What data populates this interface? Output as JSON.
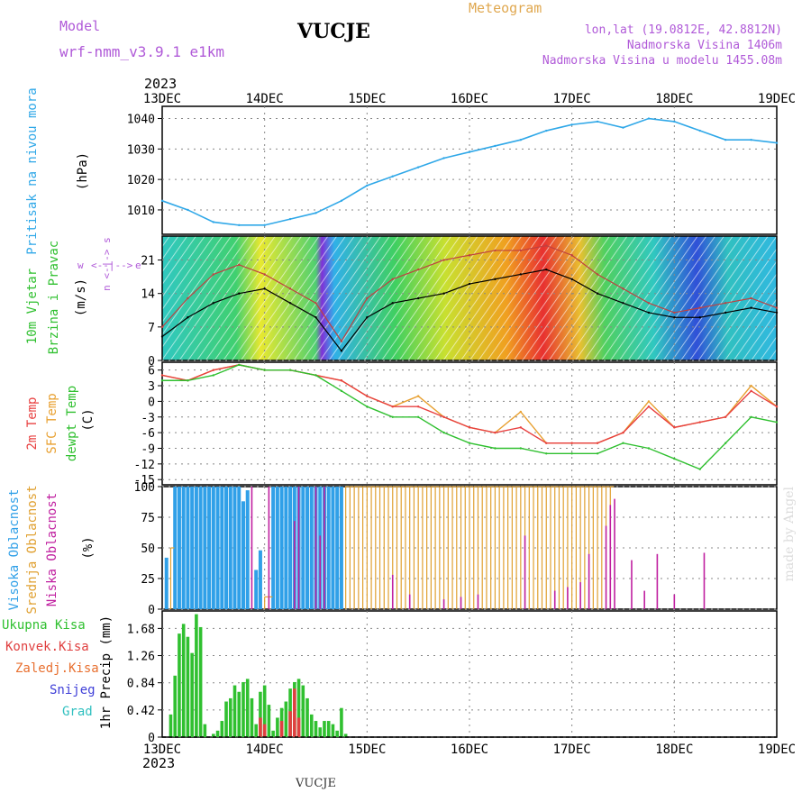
{
  "header": {
    "model_label": "Model",
    "model_name": "wrf-nmm_v3.9.1 e1km",
    "station": "VUCJE",
    "meteogram": "Meteogram",
    "coords": "lon,lat (19.0812E, 42.8812N)",
    "elevation": "Nadmorska Visina 1406m",
    "model_elevation": "Nadmorska Visina u modelu 1455.08m",
    "year_top": "2023",
    "year_bottom": "2023",
    "credit": "made by Angel",
    "footer_station": "VUCJE"
  },
  "time_axis": {
    "labels": [
      "13DEC",
      "14DEC",
      "15DEC",
      "16DEC",
      "17DEC",
      "18DEC",
      "19DEC"
    ]
  },
  "panels": {
    "pressure": {
      "ylabel": [
        "Pritisak na nivou mora",
        "(hPa)"
      ]
    },
    "wind": {
      "ylabel": [
        "10m Vjetar",
        "Brzina i Pravac",
        "(m/s)"
      ],
      "compass": [
        "w",
        "<--|-->",
        "e"
      ],
      "compass2": [
        "n",
        "<-|->",
        "s"
      ]
    },
    "temp": {
      "ylabel": [
        "2m Temp",
        "SFC Temp",
        "dewpt Temp",
        "(C)"
      ]
    },
    "cloud": {
      "ylabel": [
        "Visoka Oblacnost",
        "Srednja Oblacnost",
        "Niska Oblacnost",
        "(%)"
      ]
    },
    "precip": {
      "legend": [
        "Ukupna Kisa",
        "Konvek.Kisa",
        "Zaledj.Kisa",
        "Snijeg",
        "Grad"
      ],
      "ylabel": "1hr Precip (mm)"
    }
  },
  "colors": {
    "pressure": "#30a8e8",
    "temp2m": "#e84040",
    "sfc": "#e8a030",
    "dewpt": "#30c030",
    "high_cloud": "#30a0e8",
    "mid_cloud": "#e0a030",
    "low_cloud": "#c020a0",
    "precip_total": "#30c030",
    "precip_conv": "#e04040",
    "precip_frz": "#e87030",
    "snow": "#4040d8",
    "hail": "#30c0c0",
    "model_color": "#b05ad8",
    "meteogram_color": "#e0a850"
  },
  "chart_data": [
    {
      "type": "line",
      "title": "",
      "ylabel": "(hPa)",
      "ylim": [
        1002,
        1044
      ],
      "yticks": [
        1010,
        1020,
        1030,
        1040
      ],
      "x": [
        0,
        6,
        12,
        18,
        24,
        30,
        36,
        42,
        48,
        54,
        60,
        66,
        72,
        78,
        84,
        90,
        96,
        102,
        108,
        114,
        120,
        126,
        132,
        138,
        144
      ],
      "series": [
        {
          "values": [
            1013,
            1010,
            1006,
            1005,
            1005,
            1007,
            1009,
            1013,
            1018,
            1021,
            1024,
            1027,
            1029,
            1031,
            1033,
            1036,
            1038,
            1039,
            1037,
            1040,
            1039,
            1036,
            1033,
            1033,
            1032
          ]
        }
      ]
    },
    {
      "type": "line",
      "ylabel": "(m/s)",
      "ylim": [
        0,
        26
      ],
      "yticks": [
        0,
        7,
        14,
        21
      ],
      "x": [
        0,
        6,
        12,
        18,
        24,
        30,
        36,
        42,
        48,
        54,
        60,
        66,
        72,
        78,
        84,
        90,
        96,
        102,
        108,
        114,
        120,
        126,
        132,
        138,
        144
      ],
      "series": [
        {
          "values": [
            5,
            9,
            12,
            14,
            15,
            12,
            9,
            2,
            9,
            12,
            13,
            14,
            16,
            17,
            18,
            19,
            17,
            14,
            12,
            10,
            9,
            9,
            10,
            11,
            10
          ]
        },
        {
          "values": [
            7,
            13,
            18,
            20,
            18,
            15,
            12,
            4,
            13,
            17,
            19,
            21,
            22,
            23,
            23,
            24,
            22,
            18,
            15,
            12,
            10,
            11,
            12,
            13,
            11
          ]
        }
      ]
    },
    {
      "type": "line",
      "ylabel": "(C)",
      "ylim": [
        -16,
        7.5
      ],
      "yticks": [
        6,
        3,
        0,
        -3,
        -6,
        -9,
        -12,
        -15
      ],
      "x": [
        0,
        6,
        12,
        18,
        24,
        30,
        36,
        42,
        48,
        54,
        60,
        66,
        72,
        78,
        84,
        90,
        96,
        102,
        108,
        114,
        120,
        126,
        132,
        138,
        144
      ],
      "series": [
        {
          "values": [
            5,
            4,
            6,
            7,
            6,
            6,
            5,
            4,
            1,
            -1,
            -1,
            -3,
            -5,
            -6,
            -5,
            -8,
            -8,
            -8,
            -6,
            -1,
            -5,
            -4,
            -3,
            2,
            -1
          ]
        },
        {
          "values": [
            5,
            4,
            6,
            7,
            6,
            6,
            5,
            4,
            1,
            -1,
            1,
            -3,
            -5,
            -6,
            -2,
            -8,
            -8,
            -8,
            -6,
            0,
            -5,
            -4,
            -3,
            3,
            -1
          ]
        },
        {
          "values": [
            4,
            4,
            5,
            7,
            6,
            6,
            5,
            2,
            -1,
            -3,
            -3,
            -6,
            -8,
            -9,
            -9,
            -10,
            -10,
            -10,
            -8,
            -9,
            -11,
            -13,
            -8,
            -3,
            -4
          ]
        }
      ]
    },
    {
      "type": "bar",
      "ylabel": "(%)",
      "ylim": [
        0,
        100
      ],
      "yticks": [
        0,
        25,
        50,
        75,
        100
      ],
      "series": [
        {
          "name": "Visoka Oblacnost",
          "x": [
            1,
            3,
            4,
            5,
            6,
            7,
            8,
            9,
            10,
            11,
            12,
            13,
            14,
            15,
            16,
            17,
            18,
            19,
            20,
            22,
            23,
            26,
            27,
            28,
            29,
            30,
            31,
            32,
            33,
            34,
            35,
            36,
            37,
            38,
            39,
            40,
            41,
            42
          ],
          "values": [
            42,
            100,
            100,
            100,
            100,
            100,
            100,
            100,
            100,
            100,
            100,
            100,
            100,
            100,
            100,
            100,
            100,
            88,
            97,
            32,
            48,
            100,
            100,
            100,
            100,
            100,
            100,
            100,
            100,
            100,
            100,
            100,
            100,
            100,
            100,
            100,
            100,
            100
          ]
        },
        {
          "name": "Srednja Oblacnost",
          "x": [
            2,
            24,
            25,
            43,
            44,
            45,
            46,
            47,
            48,
            49,
            50,
            51,
            52,
            53,
            54,
            55,
            56,
            57,
            58,
            59,
            60,
            61,
            62,
            63,
            64,
            65,
            66,
            67,
            68,
            69,
            70,
            71,
            72,
            73,
            74,
            75,
            76,
            77,
            78,
            79,
            80,
            81,
            82,
            83,
            84,
            85,
            86,
            87,
            88,
            89,
            90,
            91,
            92,
            93,
            94,
            95,
            96,
            97,
            98,
            99,
            100,
            101,
            102,
            103,
            104,
            105
          ],
          "values": [
            50,
            10,
            10,
            100,
            100,
            100,
            100,
            100,
            100,
            100,
            100,
            100,
            100,
            100,
            100,
            100,
            100,
            100,
            100,
            100,
            100,
            100,
            100,
            100,
            100,
            100,
            100,
            100,
            100,
            100,
            100,
            100,
            100,
            100,
            100,
            100,
            100,
            100,
            100,
            100,
            100,
            100,
            100,
            100,
            100,
            100,
            100,
            100,
            100,
            100,
            100,
            100,
            100,
            100,
            100,
            100,
            100,
            100,
            100,
            100,
            100,
            100,
            100,
            100,
            100,
            100
          ]
        },
        {
          "name": "Niska Oblacnost",
          "x": [
            21,
            25,
            31,
            32,
            36,
            37,
            38,
            54,
            58,
            66,
            70,
            74,
            85,
            92,
            95,
            98,
            100,
            104,
            105,
            106,
            110,
            113,
            116,
            120,
            127
          ],
          "values": [
            100,
            100,
            72,
            100,
            100,
            60,
            100,
            28,
            12,
            8,
            10,
            12,
            60,
            15,
            18,
            22,
            45,
            68,
            85,
            90,
            40,
            15,
            45,
            12,
            46
          ]
        }
      ]
    },
    {
      "type": "bar",
      "ylabel": "1hr Precip (mm)",
      "ylim": [
        0,
        1.95
      ],
      "yticks": [
        0,
        0.42,
        0.84,
        1.26,
        1.68
      ],
      "series": [
        {
          "name": "Ukupna Kisa",
          "x": [
            2,
            3,
            4,
            5,
            6,
            7,
            8,
            9,
            10,
            12,
            13,
            14,
            15,
            16,
            17,
            18,
            19,
            20,
            21,
            22,
            23,
            24,
            25,
            26,
            27,
            28,
            29,
            30,
            31,
            32,
            33,
            34,
            35,
            36,
            37,
            38,
            39,
            40,
            41,
            42,
            43
          ],
          "values": [
            0.35,
            0.95,
            1.6,
            1.75,
            1.55,
            1.3,
            1.9,
            1.7,
            0.2,
            0.05,
            0.1,
            0.25,
            0.55,
            0.6,
            0.8,
            0.7,
            0.85,
            0.9,
            0.6,
            0.2,
            0.7,
            0.8,
            0.5,
            0.1,
            0.3,
            0.45,
            0.55,
            0.75,
            0.85,
            0.9,
            0.8,
            0.6,
            0.35,
            0.25,
            0.15,
            0.25,
            0.25,
            0.2,
            0.1,
            0.45,
            0.05
          ]
        },
        {
          "name": "Konvek.Kisa",
          "x": [
            23,
            24,
            28,
            30,
            31,
            32
          ],
          "values": [
            0.3,
            0.2,
            0.25,
            0.4,
            0.75,
            0.3
          ]
        }
      ]
    }
  ]
}
